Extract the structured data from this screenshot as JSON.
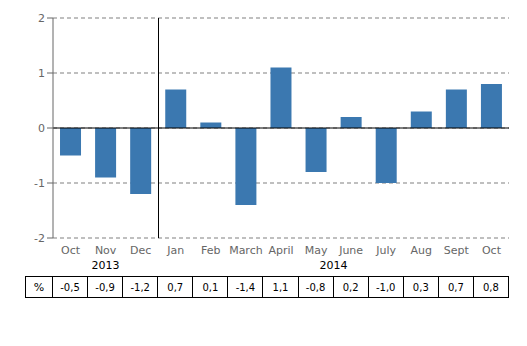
{
  "chart_data": {
    "type": "bar",
    "categories": [
      "Oct",
      "Nov",
      "Dec",
      "Jan",
      "Feb",
      "March",
      "April",
      "May",
      "June",
      "July",
      "Aug",
      "Sept",
      "Oct"
    ],
    "values": [
      -0.5,
      -0.9,
      -1.2,
      0.7,
      0.1,
      -1.4,
      1.1,
      -0.8,
      0.2,
      -1.0,
      0.3,
      0.7,
      0.8
    ],
    "value_labels": [
      "-0,5",
      "-0,9",
      "-1,2",
      "0,7",
      "0,1",
      "-1,4",
      "1,1",
      "-0,8",
      "0,2",
      "-1,0",
      "0,3",
      "0,7",
      "0,8"
    ],
    "color": "#3b78b0",
    "ylim": [
      -2,
      2
    ],
    "yticks": [
      -2,
      -1,
      0,
      1,
      2
    ],
    "grid": true,
    "annotations": [
      {
        "text": "2013",
        "positions": [
          0,
          1,
          2
        ]
      },
      {
        "text": "2014",
        "positions": [
          3,
          4,
          5,
          6,
          7,
          8,
          9,
          10,
          11,
          12
        ]
      }
    ],
    "table_header": "%"
  }
}
